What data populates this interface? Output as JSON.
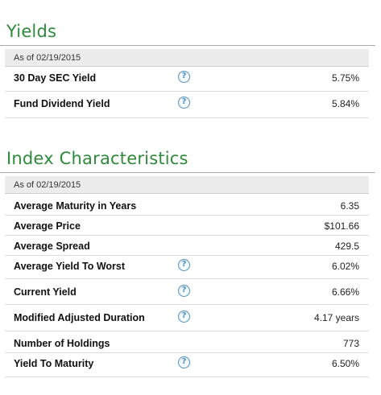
{
  "yields": {
    "title": "Yields",
    "as_of": "As of 02/19/2015",
    "rows": [
      {
        "label": "30 Day SEC Yield",
        "value": "5.75%",
        "help": "?"
      },
      {
        "label": "Fund Dividend Yield",
        "value": "5.84%",
        "help": "?"
      }
    ]
  },
  "index": {
    "title": "Index Characteristics",
    "as_of": "As of 02/19/2015",
    "rows": [
      {
        "label": "Average Maturity in Years",
        "value": "6.35"
      },
      {
        "label": "Average Price",
        "value": "$101.66"
      },
      {
        "label": "Average Spread",
        "value": "429.5"
      },
      {
        "label": "Average Yield To Worst",
        "value": "6.02%",
        "help": "?"
      },
      {
        "label": "Current Yield",
        "value": "6.66%",
        "help": "?"
      },
      {
        "label": "Modified Adjusted Duration",
        "value": "4.17 years",
        "help": "?"
      },
      {
        "label": "Number of Holdings",
        "value": "773"
      },
      {
        "label": "Yield To Maturity",
        "value": "6.50%",
        "help": "?"
      }
    ]
  },
  "colors": {
    "title_green": "#2e8b3a",
    "help_blue": "#4a8fc6",
    "asof_bg": "#ececec"
  }
}
